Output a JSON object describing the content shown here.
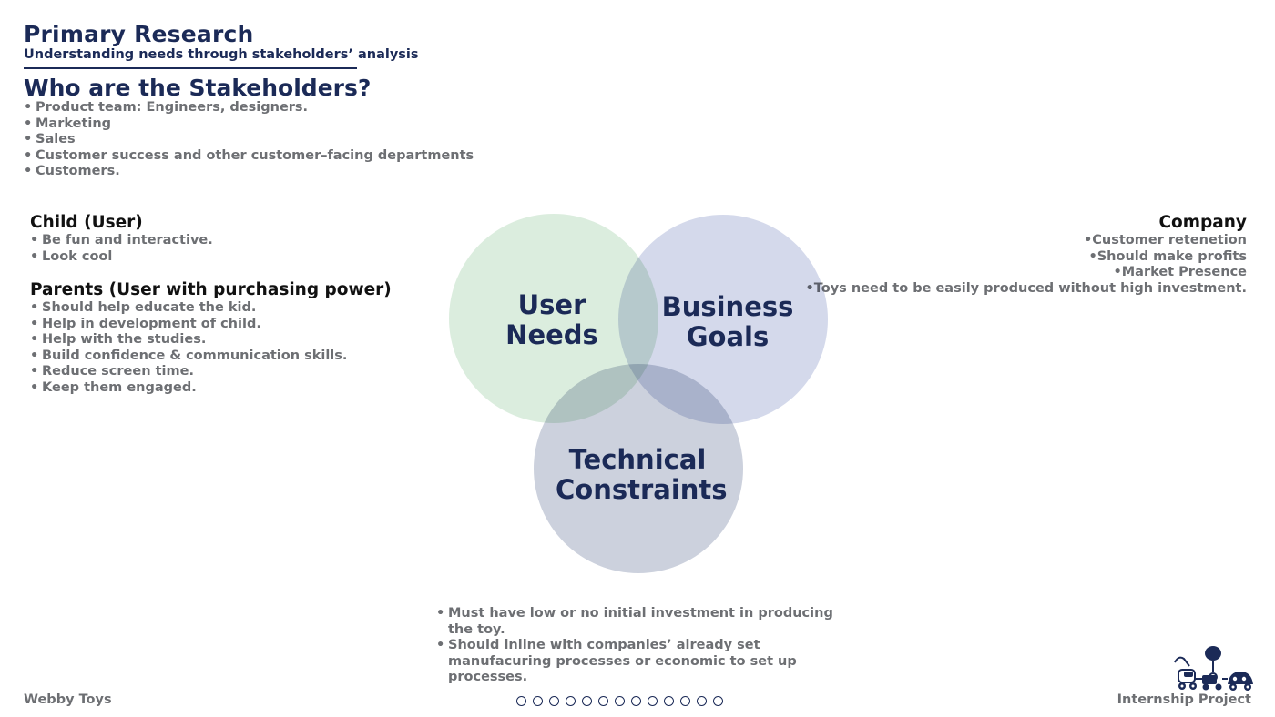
{
  "header": {
    "title": "Primary Research",
    "subtitle": "Understanding needs through stakeholders’ analysis",
    "section_heading": "Who are the Stakeholders?",
    "stakeholders": [
      "Product team: Engineers, designers.",
      "Marketing",
      "Sales",
      "Customer success and other customer–facing departments",
      "Customers."
    ]
  },
  "child": {
    "heading": "Child (User)",
    "items": [
      "Be fun and interactive.",
      "Look cool"
    ]
  },
  "parents": {
    "heading": "Parents (User with purchasing power)",
    "items": [
      "Should help educate the kid.",
      "Help in development of child.",
      "Help with the studies.",
      "Build confidence & communication skills.",
      "Reduce screen time.",
      "Keep them engaged."
    ]
  },
  "company": {
    "heading": "Company",
    "items": [
      "Customer retenetion",
      "Should make profits",
      "Market Presence",
      "Toys need to be easily produced without high investment."
    ]
  },
  "venn": {
    "user_needs": [
      "User",
      "Needs"
    ],
    "business_goals": [
      "Business",
      "Goals"
    ],
    "technical_constraints": [
      "Technical",
      "Constraints"
    ],
    "colors": {
      "user_needs": "#d9ecdc",
      "business_goals": "#ccd2e7",
      "technical_constraints": "#c3c9d7",
      "text": "#1b2a57"
    }
  },
  "technical": {
    "items": [
      "Must have low or no initial investment in producing the toy.",
      "Should inline with companies’ already set manufacuring processes or economic to set up processes."
    ]
  },
  "footer": {
    "left": "Webby Toys",
    "right": "Internship Project",
    "logo_icon": "toy-train-icon"
  },
  "pager": {
    "count": 13
  },
  "bullet": "•"
}
